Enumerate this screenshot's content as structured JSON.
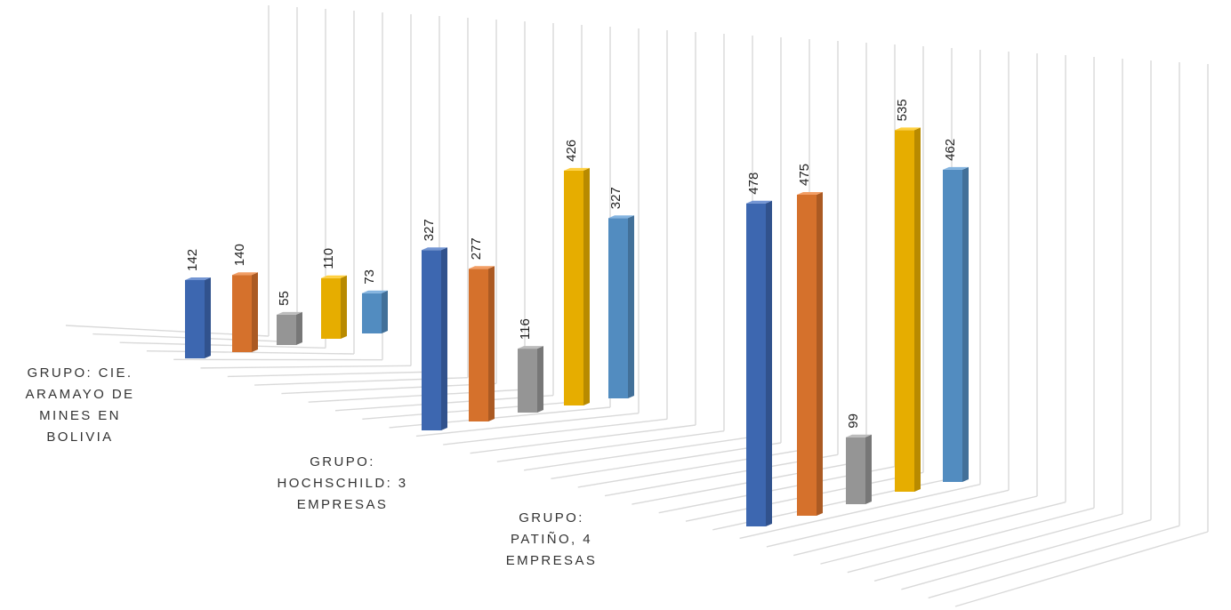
{
  "chart_data": {
    "type": "bar",
    "categories": [
      "GRUPO: CIE.\nARAMAYO DE\nMINES EN\nBOLIVIA",
      "GRUPO:\nHOCHSCHILD: 3\nEMPRESAS",
      "GRUPO:\nPATIÑO, 4\nEMPRESAS"
    ],
    "series": [
      {
        "color": "#4472c4",
        "values": [
          142,
          327,
          478
        ]
      },
      {
        "color": "#ed7d31",
        "values": [
          140,
          277,
          475
        ]
      },
      {
        "color": "#a5a5a5",
        "values": [
          55,
          116,
          99
        ]
      },
      {
        "color": "#ffc000",
        "values": [
          110,
          426,
          535
        ]
      },
      {
        "color": "#5b9bd5",
        "values": [
          73,
          327,
          462
        ]
      }
    ],
    "data_labels": true,
    "three_d": true,
    "grid": true,
    "legend": "none"
  }
}
